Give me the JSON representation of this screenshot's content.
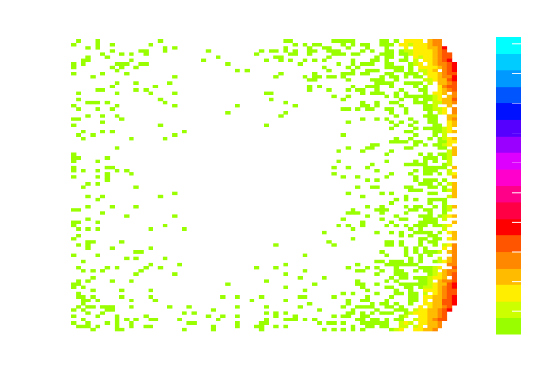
{
  "chart_data": {
    "type": "heatmap",
    "description_note": "",
    "title": "",
    "xlabel": "",
    "ylabel": "",
    "axes_visible": false,
    "grid": false,
    "shape": "half-disk (right half), dense at the right rim",
    "grid_size": {
      "cols": 80,
      "rows": 90
    },
    "colorbar": {
      "position": "right",
      "levels": 17,
      "tick_count": 10,
      "colors": [
        "#99ff00",
        "#ccff00",
        "#ffee00",
        "#ffbb00",
        "#ff8800",
        "#ff5500",
        "#ff0000",
        "#ff0044",
        "#ff0088",
        "#ff00cc",
        "#dd00ff",
        "#9900ff",
        "#5500ff",
        "#0011ff",
        "#0055ff",
        "#0099ff",
        "#00ccff",
        "#00ffff"
      ]
    },
    "rows": [
      {
        "y": 0.0,
        "cells": []
      }
    ]
  }
}
